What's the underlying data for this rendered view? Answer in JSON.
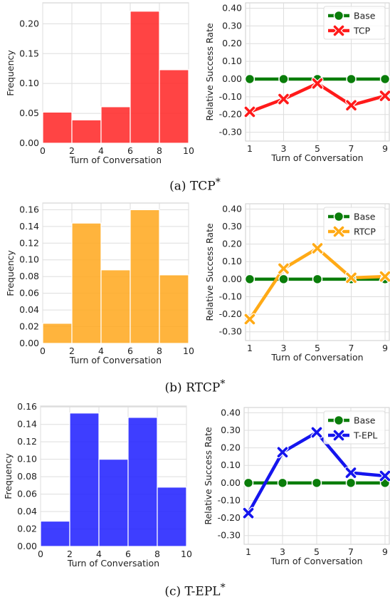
{
  "chart_data": [
    {
      "id": "a-hist",
      "type": "bar",
      "color": "#ff2a2a",
      "xlabel": "Turn of Conversation",
      "ylabel": "Frequency",
      "xlim": [
        0,
        10
      ],
      "ylim": [
        0,
        0.235
      ],
      "xticks": [
        "0",
        "2",
        "4",
        "6",
        "8",
        "10"
      ],
      "yticks": [
        "0.00",
        "0.05",
        "0.10",
        "0.15",
        "0.20"
      ],
      "bins": [
        [
          0,
          2
        ],
        [
          2,
          4
        ],
        [
          4,
          6
        ],
        [
          6,
          8
        ],
        [
          8,
          10
        ]
      ],
      "values": [
        0.052,
        0.039,
        0.061,
        0.221,
        0.123
      ],
      "grid": true
    },
    {
      "id": "a-line",
      "type": "line",
      "xlabel": "Turn of Conversation",
      "ylabel": "Relative Success Rate",
      "x": [
        1,
        3,
        5,
        7,
        9
      ],
      "xlim": [
        0.75,
        9.25
      ],
      "ylim": [
        -0.35,
        0.43
      ],
      "xticks": [
        "1",
        "3",
        "5",
        "7",
        "9"
      ],
      "yticks": [
        "-0.30",
        "-0.20",
        "-0.10",
        "0.00",
        "0.10",
        "0.20",
        "0.30",
        "0.40"
      ],
      "legend_position": "top-right",
      "grid": true,
      "series": [
        {
          "name": "Base",
          "color": "#0a7d0a",
          "marker": "circle",
          "values": [
            0,
            0,
            0,
            0,
            0
          ]
        },
        {
          "name": "TCP",
          "color": "#ff1a1a",
          "marker": "x",
          "values": [
            -0.185,
            -0.113,
            -0.025,
            -0.148,
            -0.095
          ]
        }
      ]
    },
    {
      "id": "b-hist",
      "type": "bar",
      "color": "#ffaa22",
      "xlabel": "Turn of Conversation",
      "ylabel": "Frequency",
      "xlim": [
        0,
        10
      ],
      "ylim": [
        0,
        0.168
      ],
      "xticks": [
        "0",
        "2",
        "4",
        "6",
        "8",
        "10"
      ],
      "yticks": [
        "0.00",
        "0.02",
        "0.04",
        "0.06",
        "0.08",
        "0.10",
        "0.12",
        "0.14",
        "0.16"
      ],
      "bins": [
        [
          0,
          2
        ],
        [
          2,
          4
        ],
        [
          4,
          6
        ],
        [
          6,
          8
        ],
        [
          8,
          10
        ]
      ],
      "values": [
        0.024,
        0.144,
        0.088,
        0.16,
        0.082
      ],
      "grid": true
    },
    {
      "id": "b-line",
      "type": "line",
      "xlabel": "Turn of Conversation",
      "ylabel": "Relative Success Rate",
      "x": [
        1,
        3,
        5,
        7,
        9
      ],
      "xlim": [
        0.75,
        9.25
      ],
      "ylim": [
        -0.35,
        0.43
      ],
      "xticks": [
        "1",
        "3",
        "5",
        "7",
        "9"
      ],
      "yticks": [
        "-0.30",
        "-0.20",
        "-0.10",
        "0.00",
        "0.10",
        "0.20",
        "0.30",
        "0.40"
      ],
      "legend_position": "top-right",
      "grid": true,
      "series": [
        {
          "name": "Base",
          "color": "#0a7d0a",
          "marker": "circle",
          "values": [
            0,
            0,
            0,
            0,
            0
          ]
        },
        {
          "name": "RTCP",
          "color": "#ffaa16",
          "marker": "x",
          "values": [
            -0.228,
            0.06,
            0.176,
            0.008,
            0.015
          ]
        }
      ]
    },
    {
      "id": "c-hist",
      "type": "bar",
      "color": "#2323ff",
      "xlabel": "Turn of Conversation",
      "ylabel": "Frequency",
      "xlim": [
        0,
        10
      ],
      "ylim": [
        0,
        0.161
      ],
      "xticks": [
        "0",
        "2",
        "4",
        "6",
        "8",
        "10"
      ],
      "yticks": [
        "0.00",
        "0.02",
        "0.04",
        "0.06",
        "0.08",
        "0.10",
        "0.12",
        "0.14",
        "0.16"
      ],
      "bins": [
        [
          0,
          2
        ],
        [
          2,
          4
        ],
        [
          4,
          6
        ],
        [
          6,
          8
        ],
        [
          8,
          10
        ]
      ],
      "values": [
        0.029,
        0.153,
        0.1,
        0.148,
        0.068
      ],
      "grid": true
    },
    {
      "id": "c-line",
      "type": "line",
      "xlabel": "Turn of Conversation",
      "ylabel": "Relative Success Rate",
      "x": [
        1,
        3,
        5,
        7,
        9
      ],
      "xlim": [
        0.75,
        9.25
      ],
      "ylim": [
        -0.35,
        0.43
      ],
      "xticks": [
        "1",
        "3",
        "5",
        "7",
        "9"
      ],
      "yticks": [
        "-0.30",
        "-0.20",
        "-0.10",
        "0.00",
        "0.10",
        "0.20",
        "0.30",
        "0.40"
      ],
      "legend_position": "top-right",
      "grid": true,
      "series": [
        {
          "name": "Base",
          "color": "#0a7d0a",
          "marker": "circle",
          "values": [
            0,
            0,
            0,
            0,
            0
          ]
        },
        {
          "name": "T-EPL",
          "color": "#1515ee",
          "marker": "x",
          "values": [
            -0.172,
            0.175,
            0.288,
            0.058,
            0.04
          ]
        }
      ]
    }
  ],
  "captions": {
    "a": "(a) TCP",
    "b": "(b) RTCP",
    "c": "(c) T-EPL",
    "marker": "*"
  }
}
